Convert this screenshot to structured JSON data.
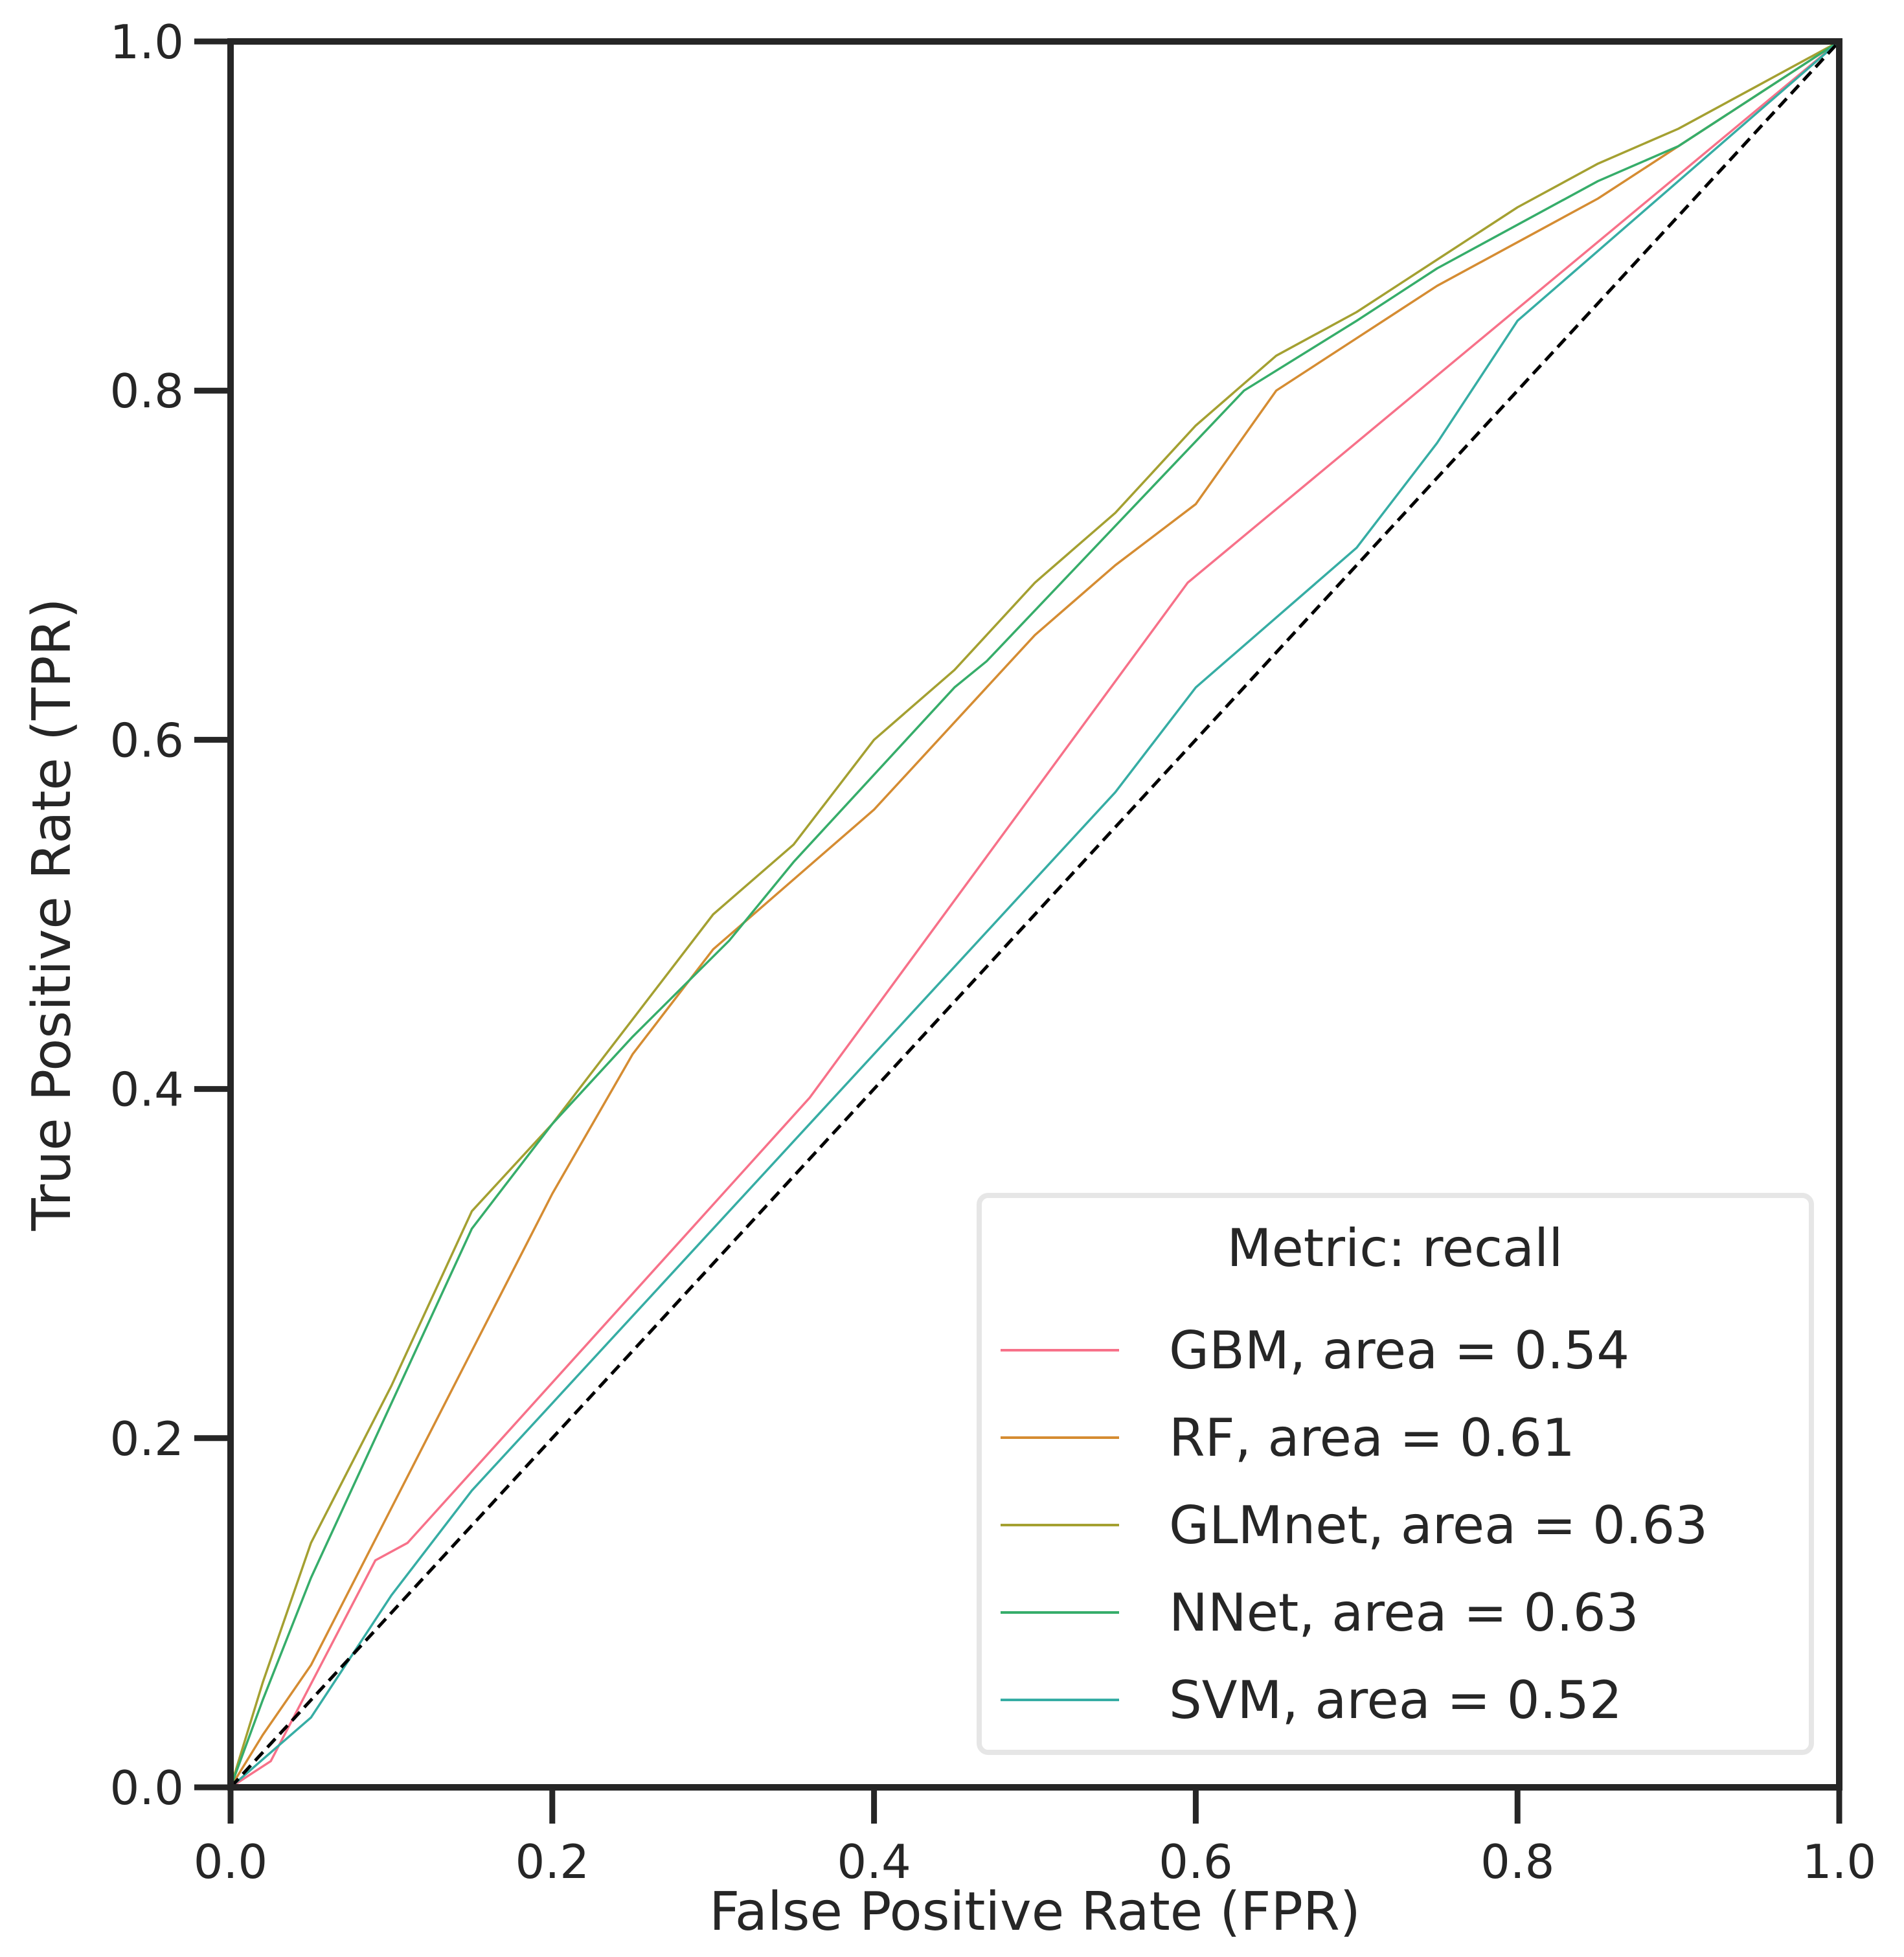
{
  "chart_data": {
    "type": "line",
    "xlabel": "False Positive Rate (FPR)",
    "ylabel": "True Positive Rate (TPR)",
    "xlim": [
      0,
      1
    ],
    "ylim": [
      0,
      1
    ],
    "xticks": [
      "0.0",
      "0.2",
      "0.4",
      "0.6",
      "0.8",
      "1.0"
    ],
    "yticks": [
      "0.0",
      "0.2",
      "0.4",
      "0.6",
      "0.8",
      "1.0"
    ],
    "grid": false,
    "legend": {
      "title": "Metric: recall",
      "placement": "lower-right"
    },
    "diagonal": {
      "style": "dashed",
      "color": "#000000",
      "points": [
        [
          0,
          0
        ],
        [
          1,
          1
        ]
      ]
    },
    "series": [
      {
        "name": "GBM, area = 0.54",
        "color": "#f77189",
        "points": [
          [
            0,
            0
          ],
          [
            0.025,
            0.015
          ],
          [
            0.09,
            0.13
          ],
          [
            0.11,
            0.14
          ],
          [
            0.36,
            0.395
          ],
          [
            0.595,
            0.69
          ],
          [
            1,
            1
          ]
        ]
      },
      {
        "name": "RF, area = 0.61",
        "color": "#d58c32",
        "points": [
          [
            0,
            0
          ],
          [
            0.02,
            0.03
          ],
          [
            0.05,
            0.07
          ],
          [
            0.1,
            0.16
          ],
          [
            0.15,
            0.25
          ],
          [
            0.2,
            0.34
          ],
          [
            0.25,
            0.42
          ],
          [
            0.3,
            0.48
          ],
          [
            0.35,
            0.52
          ],
          [
            0.4,
            0.56
          ],
          [
            0.45,
            0.61
          ],
          [
            0.5,
            0.66
          ],
          [
            0.55,
            0.7
          ],
          [
            0.6,
            0.735
          ],
          [
            0.65,
            0.8
          ],
          [
            0.7,
            0.83
          ],
          [
            0.75,
            0.86
          ],
          [
            0.8,
            0.885
          ],
          [
            0.85,
            0.91
          ],
          [
            0.9,
            0.94
          ],
          [
            0.95,
            0.97
          ],
          [
            1,
            1
          ]
        ]
      },
      {
        "name": "GLMnet, area = 0.63",
        "color": "#a4a031",
        "points": [
          [
            0,
            0
          ],
          [
            0.02,
            0.06
          ],
          [
            0.05,
            0.14
          ],
          [
            0.1,
            0.23
          ],
          [
            0.15,
            0.33
          ],
          [
            0.2,
            0.38
          ],
          [
            0.25,
            0.44
          ],
          [
            0.3,
            0.5
          ],
          [
            0.35,
            0.54
          ],
          [
            0.4,
            0.6
          ],
          [
            0.45,
            0.64
          ],
          [
            0.5,
            0.69
          ],
          [
            0.55,
            0.73
          ],
          [
            0.6,
            0.78
          ],
          [
            0.65,
            0.82
          ],
          [
            0.7,
            0.845
          ],
          [
            0.75,
            0.875
          ],
          [
            0.8,
            0.905
          ],
          [
            0.85,
            0.93
          ],
          [
            0.9,
            0.95
          ],
          [
            0.95,
            0.975
          ],
          [
            1,
            1
          ]
        ]
      },
      {
        "name": "NNet, area = 0.63",
        "color": "#36ad6a",
        "points": [
          [
            0,
            0
          ],
          [
            0.02,
            0.05
          ],
          [
            0.05,
            0.12
          ],
          [
            0.1,
            0.22
          ],
          [
            0.15,
            0.32
          ],
          [
            0.2,
            0.38
          ],
          [
            0.25,
            0.43
          ],
          [
            0.31,
            0.485
          ],
          [
            0.35,
            0.53
          ],
          [
            0.4,
            0.58
          ],
          [
            0.45,
            0.63
          ],
          [
            0.47,
            0.645
          ],
          [
            0.63,
            0.8
          ],
          [
            0.7,
            0.84
          ],
          [
            0.75,
            0.87
          ],
          [
            0.8,
            0.895
          ],
          [
            0.85,
            0.92
          ],
          [
            0.9,
            0.94
          ],
          [
            0.95,
            0.97
          ],
          [
            1,
            1
          ]
        ]
      },
      {
        "name": "SVM, area = 0.52",
        "color": "#36ada4",
        "points": [
          [
            0,
            0
          ],
          [
            0.05,
            0.04
          ],
          [
            0.1,
            0.11
          ],
          [
            0.15,
            0.17
          ],
          [
            0.2,
            0.22
          ],
          [
            0.25,
            0.27
          ],
          [
            0.3,
            0.32
          ],
          [
            0.35,
            0.37
          ],
          [
            0.4,
            0.42
          ],
          [
            0.45,
            0.47
          ],
          [
            0.5,
            0.52
          ],
          [
            0.55,
            0.57
          ],
          [
            0.6,
            0.63
          ],
          [
            0.65,
            0.67
          ],
          [
            0.7,
            0.71
          ],
          [
            0.75,
            0.77
          ],
          [
            0.8,
            0.84
          ],
          [
            0.85,
            0.88
          ],
          [
            0.9,
            0.92
          ],
          [
            0.95,
            0.96
          ],
          [
            1,
            1
          ]
        ]
      }
    ]
  }
}
